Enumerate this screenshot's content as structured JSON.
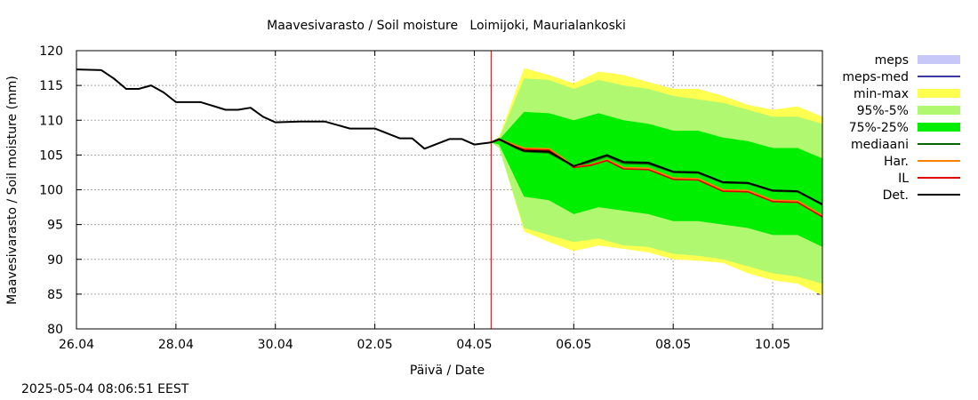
{
  "chart_data": {
    "type": "line",
    "title": "Maavesivarasto / Soil moisture   Loimijoki, Maurialankoski",
    "xlabel": "Päivä / Date",
    "ylabel": "Maavesivarasto / Soil moisture (mm)",
    "x_unit": "date (2025, day of month)",
    "xlim": [
      "2025-04-26",
      "2025-05-11"
    ],
    "ylim": [
      80,
      120
    ],
    "x_ticks": [
      {
        "date": "2025-04-26",
        "label": "26.04"
      },
      {
        "date": "2025-04-28",
        "label": "28.04"
      },
      {
        "date": "2025-04-30",
        "label": "30.04"
      },
      {
        "date": "2025-05-02",
        "label": "02.05"
      },
      {
        "date": "2025-05-04",
        "label": "04.05"
      },
      {
        "date": "2025-05-06",
        "label": "06.05"
      },
      {
        "date": "2025-05-08",
        "label": "08.05"
      },
      {
        "date": "2025-05-10",
        "label": "10.05"
      }
    ],
    "y_ticks": [
      80,
      85,
      90,
      95,
      100,
      105,
      110,
      115,
      120
    ],
    "grid": true,
    "legend_position": "right",
    "forecast_marker": {
      "date": "2025-05-04 08:06",
      "color": "#d40000"
    },
    "series": [
      {
        "name": "meps",
        "kind": "band",
        "color": "#c8c8f8",
        "x": [],
        "lo": [],
        "hi": []
      },
      {
        "name": "meps-med",
        "kind": "line",
        "color": "#3a3aa0",
        "x": [],
        "y": []
      },
      {
        "name": "min-max",
        "kind": "band",
        "color": "#ffff50",
        "x": [
          "2025-05-04 08:00",
          "2025-05-04 12:00",
          "2025-05-05 00:00",
          "2025-05-05 12:00",
          "2025-05-06 00:00",
          "2025-05-06 12:00",
          "2025-05-07 00:00",
          "2025-05-07 12:00",
          "2025-05-08 00:00",
          "2025-05-08 12:00",
          "2025-05-09 00:00",
          "2025-05-09 12:00",
          "2025-05-10 00:00",
          "2025-05-10 12:00",
          "2025-05-11 00:00"
        ],
        "lo": [
          106.8,
          106.2,
          94.0,
          92.5,
          91.2,
          92.0,
          91.5,
          91.0,
          90.0,
          89.8,
          89.5,
          88.0,
          87.0,
          86.5,
          84.8
        ],
        "hi": [
          106.9,
          107.6,
          117.5,
          116.5,
          115.3,
          117.0,
          116.5,
          115.5,
          114.5,
          114.5,
          113.5,
          112.2,
          111.5,
          112.0,
          110.5
        ]
      },
      {
        "name": "95%-5%",
        "kind": "band",
        "color": "#b0f870",
        "x": [
          "2025-05-04 08:00",
          "2025-05-04 12:00",
          "2025-05-05 00:00",
          "2025-05-05 12:00",
          "2025-05-06 00:00",
          "2025-05-06 12:00",
          "2025-05-07 00:00",
          "2025-05-07 12:00",
          "2025-05-08 00:00",
          "2025-05-08 12:00",
          "2025-05-09 00:00",
          "2025-05-09 12:00",
          "2025-05-10 00:00",
          "2025-05-10 12:00",
          "2025-05-11 00:00"
        ],
        "lo": [
          106.8,
          106.0,
          94.5,
          93.5,
          92.5,
          93.0,
          92.0,
          91.8,
          90.8,
          90.5,
          90.0,
          89.0,
          88.0,
          87.5,
          86.5
        ],
        "hi": [
          106.9,
          107.4,
          116.0,
          115.8,
          114.5,
          115.8,
          115.0,
          114.5,
          113.5,
          113.0,
          112.5,
          111.5,
          110.5,
          110.5,
          109.5
        ]
      },
      {
        "name": "75%-25%",
        "kind": "band",
        "color": "#00ee00",
        "x": [
          "2025-05-04 08:00",
          "2025-05-04 12:00",
          "2025-05-05 00:00",
          "2025-05-05 12:00",
          "2025-05-06 00:00",
          "2025-05-06 12:00",
          "2025-05-07 00:00",
          "2025-05-07 12:00",
          "2025-05-08 00:00",
          "2025-05-08 12:00",
          "2025-05-09 00:00",
          "2025-05-09 12:00",
          "2025-05-10 00:00",
          "2025-05-10 12:00",
          "2025-05-11 00:00"
        ],
        "lo": [
          106.8,
          106.5,
          99.0,
          98.5,
          96.5,
          97.5,
          97.0,
          96.5,
          95.5,
          95.5,
          95.0,
          94.5,
          93.5,
          93.5,
          91.8
        ],
        "hi": [
          106.9,
          107.2,
          111.2,
          111.0,
          110.0,
          111.0,
          110.0,
          109.5,
          108.5,
          108.5,
          107.5,
          107.0,
          106.0,
          106.0,
          104.5
        ]
      },
      {
        "name": "mediaani",
        "kind": "line",
        "color": "#006400",
        "x": [
          "2025-05-04 08:00",
          "2025-05-04 12:00",
          "2025-05-04 20:00",
          "2025-05-05 00:00",
          "2025-05-05 12:00",
          "2025-05-05 20:00",
          "2025-05-06 00:00",
          "2025-05-06 08:00",
          "2025-05-06 16:00",
          "2025-05-07 00:00",
          "2025-05-07 12:00",
          "2025-05-08 00:00",
          "2025-05-08 12:00",
          "2025-05-09 00:00",
          "2025-05-09 12:00",
          "2025-05-10 00:00",
          "2025-05-10 12:00",
          "2025-05-11 00:00"
        ],
        "y": [
          106.8,
          107.2,
          106.0,
          105.5,
          105.3,
          104.0,
          103.3,
          104.0,
          104.8,
          103.8,
          103.7,
          102.5,
          102.4,
          101.0,
          100.9,
          99.8,
          99.7,
          97.8
        ]
      },
      {
        "name": "Har.",
        "kind": "line",
        "color": "#ff8000",
        "x": [
          "2025-05-04 08:00",
          "2025-05-04 12:00",
          "2025-05-04 20:00",
          "2025-05-05 00:00",
          "2025-05-05 12:00",
          "2025-05-05 20:00",
          "2025-05-06 00:00",
          "2025-05-06 08:00",
          "2025-05-06 16:00",
          "2025-05-07 00:00",
          "2025-05-07 12:00",
          "2025-05-08 00:00",
          "2025-05-08 12:00",
          "2025-05-09 00:00",
          "2025-05-09 12:00",
          "2025-05-10 00:00",
          "2025-05-10 12:00",
          "2025-05-11 00:00"
        ],
        "y": [
          106.8,
          107.3,
          106.4,
          106.0,
          105.9,
          104.3,
          103.3,
          103.6,
          104.3,
          103.2,
          103.1,
          101.7,
          101.6,
          100.0,
          99.9,
          98.5,
          98.4,
          96.3
        ]
      },
      {
        "name": "IL",
        "kind": "line",
        "color": "#e00000",
        "x": [
          "2025-05-04 08:00",
          "2025-05-04 12:00",
          "2025-05-04 20:00",
          "2025-05-05 00:00",
          "2025-05-05 12:00",
          "2025-05-05 20:00",
          "2025-05-06 00:00",
          "2025-05-06 08:00",
          "2025-05-06 16:00",
          "2025-05-07 00:00",
          "2025-05-07 12:00",
          "2025-05-08 00:00",
          "2025-05-08 12:00",
          "2025-05-09 00:00",
          "2025-05-09 12:00",
          "2025-05-10 00:00",
          "2025-05-10 12:00",
          "2025-05-11 00:00"
        ],
        "y": [
          106.8,
          107.2,
          106.2,
          105.8,
          105.7,
          104.1,
          103.2,
          103.5,
          104.2,
          103.0,
          102.9,
          101.5,
          101.4,
          99.8,
          99.7,
          98.3,
          98.2,
          96.1
        ]
      },
      {
        "name": "Det.",
        "kind": "line",
        "color": "#000000",
        "x": [
          "2025-04-26 00:00",
          "2025-04-26 12:00",
          "2025-04-26 18:00",
          "2025-04-27 00:00",
          "2025-04-27 06:00",
          "2025-04-27 12:00",
          "2025-04-27 18:00",
          "2025-04-28 00:00",
          "2025-04-28 12:00",
          "2025-04-29 00:00",
          "2025-04-29 06:00",
          "2025-04-29 12:00",
          "2025-04-29 18:00",
          "2025-04-30 00:00",
          "2025-04-30 12:00",
          "2025-05-01 00:00",
          "2025-05-01 12:00",
          "2025-05-02 00:00",
          "2025-05-02 12:00",
          "2025-05-02 18:00",
          "2025-05-03 00:00",
          "2025-05-03 12:00",
          "2025-05-03 18:00",
          "2025-05-04 00:00",
          "2025-05-04 08:00",
          "2025-05-04 12:00",
          "2025-05-04 20:00",
          "2025-05-05 00:00",
          "2025-05-05 12:00",
          "2025-05-05 20:00",
          "2025-05-06 00:00",
          "2025-05-06 08:00",
          "2025-05-06 16:00",
          "2025-05-07 00:00",
          "2025-05-07 12:00",
          "2025-05-08 00:00",
          "2025-05-08 12:00",
          "2025-05-09 00:00",
          "2025-05-09 12:00",
          "2025-05-10 00:00",
          "2025-05-10 12:00",
          "2025-05-11 00:00"
        ],
        "y": [
          117.3,
          117.2,
          116.0,
          114.5,
          114.5,
          115.0,
          114.0,
          112.6,
          112.6,
          111.5,
          111.5,
          111.8,
          110.5,
          109.7,
          109.8,
          109.8,
          108.8,
          108.8,
          107.4,
          107.4,
          105.9,
          107.3,
          107.3,
          106.5,
          106.8,
          107.3,
          106.1,
          105.6,
          105.5,
          104.1,
          103.4,
          104.2,
          105.0,
          104.0,
          103.9,
          102.6,
          102.5,
          101.1,
          101.0,
          99.9,
          99.8,
          97.9
        ]
      }
    ]
  },
  "legend": [
    {
      "label": "meps",
      "kind": "band",
      "color": "#c8c8f8"
    },
    {
      "label": "meps-med",
      "kind": "line",
      "color": "#3a3aa0"
    },
    {
      "label": "min-max",
      "kind": "band",
      "color": "#ffff50"
    },
    {
      "label": "95%-5%",
      "kind": "band",
      "color": "#b0f870"
    },
    {
      "label": "75%-25%",
      "kind": "band",
      "color": "#00ee00"
    },
    {
      "label": "mediaani",
      "kind": "line",
      "color": "#006400"
    },
    {
      "label": "Har.",
      "kind": "line",
      "color": "#ff8000"
    },
    {
      "label": "IL",
      "kind": "line",
      "color": "#e00000"
    },
    {
      "label": "Det.",
      "kind": "line",
      "color": "#000000"
    }
  ],
  "timestamp": "2025-05-04  08:06:51 EEST"
}
